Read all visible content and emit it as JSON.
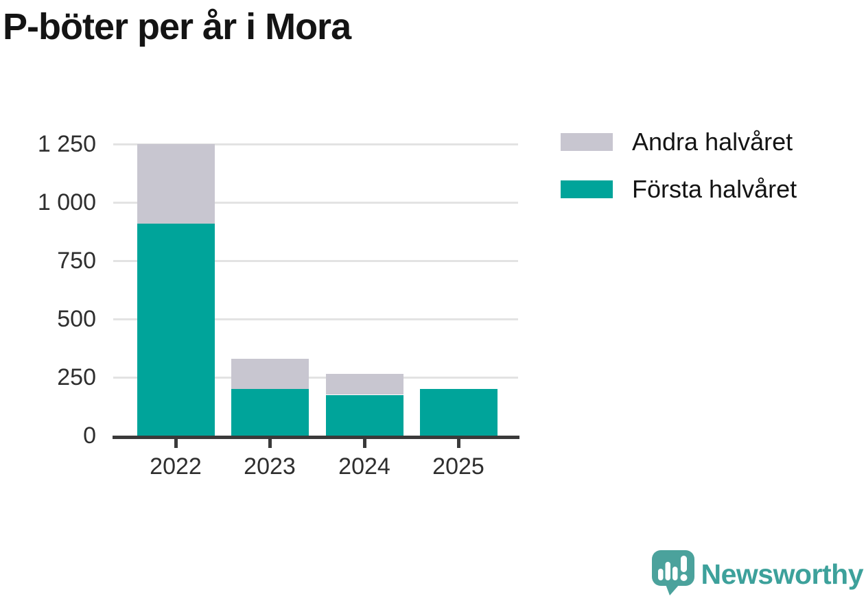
{
  "title": "P-böter per år i Mora",
  "chart_data": {
    "type": "bar",
    "stacked": true,
    "title": "P-böter per år i Mora",
    "xlabel": "",
    "ylabel": "",
    "categories": [
      "2022",
      "2023",
      "2024",
      "2025"
    ],
    "series": [
      {
        "name": "Första halvåret",
        "color": "#00a49a",
        "values": [
          910,
          200,
          175,
          200
        ]
      },
      {
        "name": "Andra halvåret",
        "color": "#c8c6d0",
        "values": [
          340,
          130,
          90,
          0
        ]
      }
    ],
    "totals": [
      1250,
      330,
      265,
      200
    ],
    "ylim": [
      0,
      1250
    ],
    "y_ticks": [
      0,
      250,
      500,
      750,
      1000,
      1250
    ],
    "y_tick_labels": [
      "0",
      "250",
      "500",
      "750",
      "1 000",
      "1 250"
    ],
    "grid": true,
    "legend_position": "top-right"
  },
  "legend": {
    "items": [
      {
        "label": "Andra halvåret",
        "color": "#c8c6d0"
      },
      {
        "label": "Första halvåret",
        "color": "#00a49a"
      }
    ]
  },
  "branding": {
    "name": "Newsworthy",
    "text_color": "#3da19b",
    "icon_color": "#4ba29c"
  }
}
